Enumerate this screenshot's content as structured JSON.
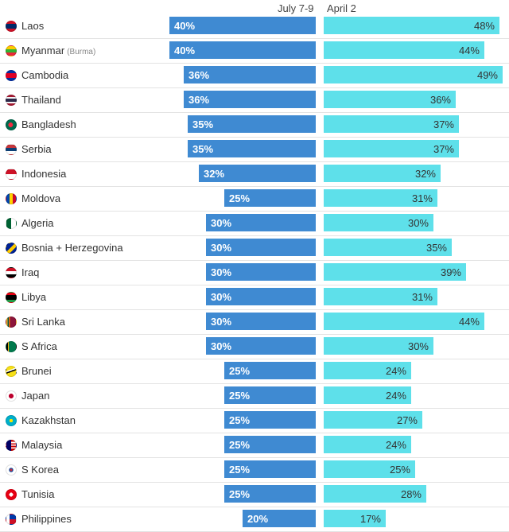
{
  "chart_data": {
    "type": "bar",
    "title": "",
    "xlabel": "",
    "ylabel": "",
    "xlim": [
      0,
      50
    ],
    "series_names": [
      "July 7-9",
      "April 2"
    ],
    "colors": {
      "july": "#3f8ad2",
      "april": "#5ee0ea"
    },
    "rows": [
      {
        "country": "Laos",
        "sub": "",
        "july": 40,
        "april": 48,
        "july_label": "40%",
        "april_label": "48%"
      },
      {
        "country": "Myanmar",
        "sub": "(Burma)",
        "july": 40,
        "april": 44,
        "july_label": "40%",
        "april_label": "44%"
      },
      {
        "country": "Cambodia",
        "sub": "",
        "july": 36,
        "april": 49,
        "july_label": "36%",
        "april_label": "49%"
      },
      {
        "country": "Thailand",
        "sub": "",
        "july": 36,
        "april": 36,
        "july_label": "36%",
        "april_label": "36%"
      },
      {
        "country": "Bangladesh",
        "sub": "",
        "july": 35,
        "april": 37,
        "july_label": "35%",
        "april_label": "37%"
      },
      {
        "country": "Serbia",
        "sub": "",
        "july": 35,
        "april": 37,
        "july_label": "35%",
        "april_label": "37%"
      },
      {
        "country": "Indonesia",
        "sub": "",
        "july": 32,
        "april": 32,
        "july_label": "32%",
        "april_label": "32%"
      },
      {
        "country": "Moldova",
        "sub": "",
        "july": 25,
        "april": 31,
        "july_label": "25%",
        "april_label": "31%"
      },
      {
        "country": "Algeria",
        "sub": "",
        "july": 30,
        "april": 30,
        "july_label": "30%",
        "april_label": "30%"
      },
      {
        "country": "Bosnia + Herzegovina",
        "sub": "",
        "july": 30,
        "april": 35,
        "july_label": "30%",
        "april_label": "35%"
      },
      {
        "country": "Iraq",
        "sub": "",
        "july": 30,
        "april": 39,
        "july_label": "30%",
        "april_label": "39%"
      },
      {
        "country": "Libya",
        "sub": "",
        "july": 30,
        "april": 31,
        "july_label": "30%",
        "april_label": "31%"
      },
      {
        "country": "Sri Lanka",
        "sub": "",
        "july": 30,
        "april": 44,
        "july_label": "30%",
        "april_label": "44%"
      },
      {
        "country": "S Africa",
        "sub": "",
        "july": 30,
        "april": 30,
        "july_label": "30%",
        "april_label": "30%"
      },
      {
        "country": "Brunei",
        "sub": "",
        "july": 25,
        "april": 24,
        "july_label": "25%",
        "april_label": "24%"
      },
      {
        "country": "Japan",
        "sub": "",
        "july": 25,
        "april": 24,
        "july_label": "25%",
        "april_label": "24%"
      },
      {
        "country": "Kazakhstan",
        "sub": "",
        "july": 25,
        "april": 27,
        "july_label": "25%",
        "april_label": "27%"
      },
      {
        "country": "Malaysia",
        "sub": "",
        "july": 25,
        "april": 24,
        "july_label": "25%",
        "april_label": "24%"
      },
      {
        "country": "S Korea",
        "sub": "",
        "july": 25,
        "april": 25,
        "july_label": "25%",
        "april_label": "25%"
      },
      {
        "country": "Tunisia",
        "sub": "",
        "july": 25,
        "april": 28,
        "july_label": "25%",
        "april_label": "28%"
      },
      {
        "country": "Philippines",
        "sub": "",
        "july": 20,
        "april": 17,
        "july_label": "20%",
        "april_label": "17%"
      }
    ]
  },
  "flags": {
    "Laos": "linear-gradient(#ce1126 0 25%, #002868 25% 75%, #ce1126 75%)",
    "Myanmar": "linear-gradient(#fecb00 0 33%, #34b233 33% 66%, #ea2839 66%)",
    "Cambodia": "linear-gradient(#032ea1 0 25%, #e00025 25% 75%, #032ea1 75%)",
    "Thailand": "linear-gradient(#a51931 0 17%, #f4f5f8 17% 33%, #2d2a4a 33% 67%, #f4f5f8 67% 83%, #a51931 83%)",
    "Bangladesh": "radial-gradient(circle at 45% 50%, #f42a41 0 32%, #006a4e 33%)",
    "Serbia": "linear-gradient(#c6363c 0 33%, #0c4076 33% 66%, #ffffff 66%)",
    "Indonesia": "linear-gradient(#ce1126 0 50%, #ffffff 50%)",
    "Moldova": "linear-gradient(90deg, #0046ae 0 33%, #ffd200 33% 66%, #cc092f 66%)",
    "Algeria": "linear-gradient(90deg, #006233 0 50%, #ffffff 50%)",
    "Bosnia + Herzegovina": "linear-gradient(135deg, #002395 0 45%, #fecb00 45% 70%, #002395 70%)",
    "Iraq": "linear-gradient(#ce1126 0 33%, #ffffff 33% 66%, #000000 66%)",
    "Libya": "linear-gradient(#e70013 0 25%, #000000 25% 75%, #239e46 75%)",
    "Sri Lanka": "linear-gradient(90deg, #ffbe29 0 12%, #00534e 12% 25%, #eb7400 25% 37%, #8d153a 37%)",
    "S Africa": "linear-gradient(90deg, #000000 0 15%, #ffb612 15% 25%, #007a4d 25%)",
    "Brunei": "linear-gradient(160deg, #f7e017 0 35%, #ffffff 35% 45%, #000000 45% 55%, #f7e017 55%)",
    "Japan": "radial-gradient(circle, #bc002d 0 35%, #ffffff 36%)",
    "Kazakhstan": "radial-gradient(circle, #ffe700 0 25%, #00afca 26%)",
    "Malaysia": "linear-gradient(90deg, #010066 0 50%, transparent 50%), repeating-linear-gradient(#cc0001 0 14%, #ffffff 14% 28%)",
    "S Korea": "radial-gradient(circle, #cd2e3a 0 18%, #0047a0 19% 32%, #ffffff 33%)",
    "Tunisia": "radial-gradient(circle, #ffffff 0 28%, #e70013 29%)",
    "Philippines": "linear-gradient(90deg, #ffffff 0 35%, transparent 35%), linear-gradient(#0038a8 0 50%, #ce1126 50%)"
  }
}
